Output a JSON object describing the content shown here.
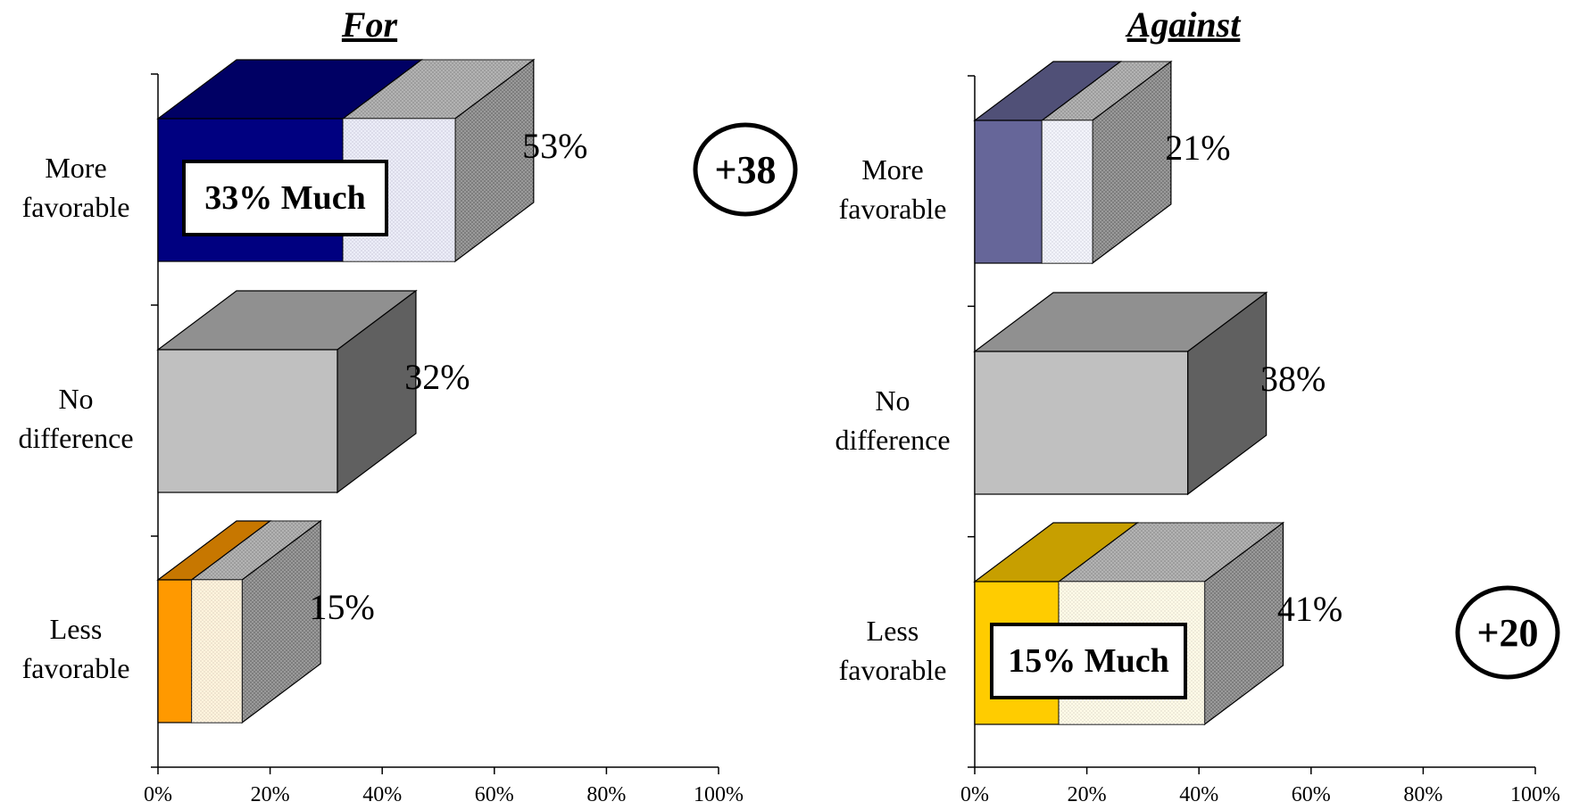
{
  "chart_data": [
    {
      "type": "bar",
      "title": "For",
      "categories": [
        "More favorable",
        "No difference",
        "Less favorable"
      ],
      "category_lines": [
        [
          "More",
          "favorable"
        ],
        [
          "No",
          "difference"
        ],
        [
          "Less",
          "favorable"
        ]
      ],
      "values": [
        53,
        32,
        15
      ],
      "value_labels": [
        "53%",
        "32%",
        "15%"
      ],
      "much_values": [
        33,
        null,
        6
      ],
      "callout": {
        "text": "33% Much",
        "category": "More favorable"
      },
      "net_badge": {
        "text": "+38",
        "row": 0
      },
      "xlim": [
        0,
        100
      ],
      "x_ticks": [
        "0%",
        "20%",
        "40%",
        "60%",
        "80%",
        "100%"
      ],
      "colors": {
        "more_much": "#000080",
        "more_some": "#d4d6ef",
        "none": "#c0c0c0",
        "less_much": "#ff9900",
        "less_some": "#ffe6b3"
      }
    },
    {
      "type": "bar",
      "title": "Against",
      "categories": [
        "More favorable",
        "No difference",
        "Less favorable"
      ],
      "category_lines": [
        [
          "More",
          "favorable"
        ],
        [
          "No",
          "difference"
        ],
        [
          "Less",
          "favorable"
        ]
      ],
      "values": [
        21,
        38,
        41
      ],
      "value_labels": [
        "21%",
        "38%",
        "41%"
      ],
      "much_values": [
        12,
        null,
        15
      ],
      "callout": {
        "text": "15% Much",
        "category": "Less favorable"
      },
      "net_badge": {
        "text": "+20",
        "row": 2
      },
      "xlim": [
        0,
        100
      ],
      "x_ticks": [
        "0%",
        "20%",
        "40%",
        "60%",
        "80%",
        "100%"
      ],
      "colors": {
        "more_much": "#666699",
        "more_some": "#e4e6f6",
        "none": "#c0c0c0",
        "less_much": "#ffcc00",
        "less_some": "#fff6cc"
      }
    }
  ]
}
